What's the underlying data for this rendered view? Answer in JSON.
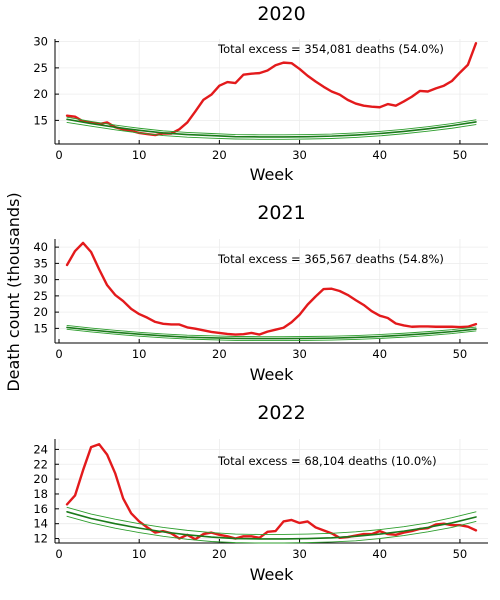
{
  "figure": {
    "ylabel": "Death count (thousands)"
  },
  "colors": {
    "observed": "#e31a1c",
    "baseline": "#1a7a1a",
    "band": "#2e9e2e"
  },
  "chart_data": [
    {
      "type": "line",
      "title": "2020",
      "xlabel": "Week",
      "xlim": [
        -0.5,
        53.5
      ],
      "ylim": [
        10.5,
        30.5
      ],
      "xticks": [
        0,
        10,
        20,
        30,
        40,
        50
      ],
      "yticks": [
        15,
        20,
        25,
        30
      ],
      "annotation": "Total excess = 354,081 deaths (54.0%)",
      "grid": true,
      "series": [
        {
          "role": "observed",
          "x": [
            1,
            2,
            3,
            4,
            5,
            6,
            7,
            8,
            9,
            10,
            11,
            12,
            13,
            14,
            15,
            16,
            17,
            18,
            19,
            20,
            21,
            22,
            23,
            24,
            25,
            26,
            27,
            28,
            29,
            30,
            31,
            32,
            33,
            34,
            35,
            36,
            37,
            38,
            39,
            40,
            41,
            42,
            43,
            44,
            45,
            46,
            47,
            48,
            49,
            50,
            51,
            52
          ],
          "values": [
            15.9,
            15.7,
            14.8,
            14.6,
            14.3,
            14.6,
            13.7,
            13.3,
            13.0,
            12.6,
            12.4,
            12.2,
            12.5,
            12.5,
            13.3,
            14.6,
            16.7,
            18.9,
            19.9,
            21.6,
            22.3,
            22.1,
            23.7,
            23.9,
            24.0,
            24.5,
            25.5,
            26.0,
            25.9,
            24.8,
            23.5,
            22.4,
            21.4,
            20.5,
            19.9,
            18.9,
            18.2,
            17.8,
            17.6,
            17.5,
            18.1,
            17.8,
            18.6,
            19.5,
            20.6,
            20.5,
            21.1,
            21.6,
            22.5,
            24.1,
            25.6,
            29.7
          ]
        },
        {
          "role": "baseline",
          "x": [
            1,
            4,
            7,
            10,
            13,
            16,
            19,
            22,
            25,
            28,
            31,
            34,
            37,
            40,
            43,
            46,
            49,
            52
          ],
          "values": [
            15.2,
            14.4,
            13.7,
            13.1,
            12.6,
            12.3,
            12.1,
            11.9,
            11.85,
            11.85,
            11.9,
            12.0,
            12.2,
            12.5,
            12.9,
            13.4,
            14.0,
            14.7
          ]
        },
        {
          "role": "band",
          "x": [
            1,
            4,
            7,
            10,
            13,
            16,
            19,
            22,
            25,
            28,
            31,
            34,
            37,
            40,
            43,
            46,
            49,
            52
          ],
          "values": [
            15.6,
            14.8,
            14.1,
            13.5,
            13.0,
            12.7,
            12.5,
            12.3,
            12.25,
            12.25,
            12.3,
            12.4,
            12.6,
            12.9,
            13.3,
            13.8,
            14.4,
            15.1
          ]
        },
        {
          "role": "band",
          "x": [
            1,
            4,
            7,
            10,
            13,
            16,
            19,
            22,
            25,
            28,
            31,
            34,
            37,
            40,
            43,
            46,
            49,
            52
          ],
          "values": [
            14.6,
            13.9,
            13.2,
            12.6,
            12.1,
            11.8,
            11.6,
            11.45,
            11.4,
            11.4,
            11.45,
            11.55,
            11.75,
            12.05,
            12.45,
            12.95,
            13.5,
            14.2
          ]
        }
      ]
    },
    {
      "type": "line",
      "title": "2021",
      "xlabel": "Week",
      "xlim": [
        -0.5,
        53.5
      ],
      "ylim": [
        10.5,
        42.5
      ],
      "xticks": [
        0,
        10,
        20,
        30,
        40,
        50
      ],
      "yticks": [
        15,
        20,
        25,
        30,
        35,
        40
      ],
      "annotation": "Total excess = 365,567 deaths (54.8%)",
      "grid": true,
      "series": [
        {
          "role": "observed",
          "x": [
            1,
            2,
            3,
            4,
            5,
            6,
            7,
            8,
            9,
            10,
            11,
            12,
            13,
            14,
            15,
            16,
            17,
            18,
            19,
            20,
            21,
            22,
            23,
            24,
            25,
            26,
            27,
            28,
            29,
            30,
            31,
            32,
            33,
            34,
            35,
            36,
            37,
            38,
            39,
            40,
            41,
            42,
            43,
            44,
            45,
            46,
            47,
            48,
            49,
            50,
            51,
            52
          ],
          "values": [
            34.5,
            38.8,
            41.3,
            38.5,
            33.2,
            28.3,
            25.3,
            23.4,
            21.0,
            19.4,
            18.3,
            17.0,
            16.4,
            16.2,
            16.2,
            15.3,
            14.9,
            14.4,
            13.9,
            13.6,
            13.3,
            13.1,
            13.2,
            13.6,
            13.1,
            14.0,
            14.6,
            15.2,
            16.9,
            19.2,
            22.3,
            24.8,
            27.1,
            27.2,
            26.5,
            25.3,
            23.7,
            22.2,
            20.3,
            18.9,
            18.2,
            16.5,
            15.9,
            15.5,
            15.6,
            15.6,
            15.5,
            15.5,
            15.5,
            15.4,
            15.5,
            16.3
          ]
        },
        {
          "role": "baseline",
          "x": [
            1,
            4,
            7,
            10,
            13,
            16,
            19,
            22,
            25,
            28,
            31,
            34,
            37,
            40,
            43,
            46,
            49,
            52
          ],
          "values": [
            15.3,
            14.5,
            13.8,
            13.2,
            12.7,
            12.3,
            12.1,
            11.9,
            11.85,
            11.85,
            11.9,
            12.0,
            12.2,
            12.5,
            12.9,
            13.4,
            14.0,
            14.8
          ]
        },
        {
          "role": "band",
          "x": [
            1,
            4,
            7,
            10,
            13,
            16,
            19,
            22,
            25,
            28,
            31,
            34,
            37,
            40,
            43,
            46,
            49,
            52
          ],
          "values": [
            15.9,
            15.1,
            14.4,
            13.8,
            13.3,
            12.9,
            12.7,
            12.5,
            12.45,
            12.45,
            12.5,
            12.6,
            12.8,
            13.1,
            13.5,
            14.0,
            14.6,
            15.4
          ]
        },
        {
          "role": "band",
          "x": [
            1,
            4,
            7,
            10,
            13,
            16,
            19,
            22,
            25,
            28,
            31,
            34,
            37,
            40,
            43,
            46,
            49,
            52
          ],
          "values": [
            14.7,
            13.9,
            13.2,
            12.6,
            12.1,
            11.7,
            11.5,
            11.3,
            11.25,
            11.25,
            11.3,
            11.4,
            11.6,
            11.9,
            12.3,
            12.8,
            13.4,
            14.2
          ]
        }
      ]
    },
    {
      "type": "line",
      "title": "2022",
      "xlabel": "Week",
      "xlim": [
        -0.5,
        53.5
      ],
      "ylim": [
        11.4,
        25.4
      ],
      "xticks": [
        0,
        10,
        20,
        30,
        40,
        50
      ],
      "yticks": [
        12,
        14,
        16,
        18,
        20,
        22,
        24
      ],
      "annotation": "Total excess = 68,104 deaths (10.0%)",
      "grid": true,
      "series": [
        {
          "role": "observed",
          "x": [
            1,
            2,
            3,
            4,
            5,
            6,
            7,
            8,
            9,
            10,
            11,
            12,
            13,
            14,
            15,
            16,
            17,
            18,
            19,
            20,
            21,
            22,
            23,
            24,
            25,
            26,
            27,
            28,
            29,
            30,
            31,
            32,
            33,
            34,
            35,
            36,
            37,
            38,
            39,
            40,
            41,
            42,
            43,
            44,
            45,
            46,
            47,
            48,
            49,
            50,
            51,
            52
          ],
          "values": [
            16.6,
            17.8,
            21.2,
            24.3,
            24.7,
            23.3,
            20.8,
            17.4,
            15.4,
            14.3,
            13.5,
            12.8,
            13.0,
            12.7,
            12.0,
            12.5,
            11.9,
            12.6,
            12.8,
            12.5,
            12.3,
            12.0,
            12.3,
            12.3,
            12.1,
            12.9,
            13.0,
            14.3,
            14.5,
            14.1,
            14.3,
            13.5,
            13.1,
            12.7,
            12.1,
            12.2,
            12.4,
            12.6,
            12.6,
            13.0,
            12.6,
            12.5,
            12.8,
            13.0,
            13.3,
            13.4,
            13.9,
            14.0,
            13.8,
            13.8,
            13.6,
            13.1
          ]
        },
        {
          "role": "baseline",
          "x": [
            1,
            4,
            7,
            10,
            13,
            16,
            19,
            22,
            25,
            28,
            31,
            34,
            37,
            40,
            43,
            46,
            49,
            52
          ],
          "values": [
            15.6,
            14.7,
            14.0,
            13.4,
            12.9,
            12.5,
            12.2,
            12.0,
            11.95,
            11.95,
            12.0,
            12.1,
            12.3,
            12.6,
            13.0,
            13.5,
            14.1,
            14.9
          ]
        },
        {
          "role": "band",
          "x": [
            1,
            4,
            7,
            10,
            13,
            16,
            19,
            22,
            25,
            28,
            31,
            34,
            37,
            40,
            43,
            46,
            49,
            52
          ],
          "values": [
            16.2,
            15.3,
            14.6,
            14.0,
            13.5,
            13.1,
            12.8,
            12.6,
            12.55,
            12.55,
            12.6,
            12.7,
            12.9,
            13.2,
            13.6,
            14.1,
            14.8,
            15.6
          ]
        },
        {
          "role": "band",
          "x": [
            1,
            4,
            7,
            10,
            13,
            16,
            19,
            22,
            25,
            28,
            31,
            34,
            37,
            40,
            43,
            46,
            49,
            52
          ],
          "values": [
            15.0,
            14.1,
            13.4,
            12.8,
            12.3,
            11.9,
            11.6,
            11.45,
            11.4,
            11.4,
            11.45,
            11.55,
            11.7,
            12.0,
            12.4,
            12.9,
            13.5,
            14.3
          ]
        }
      ]
    }
  ]
}
